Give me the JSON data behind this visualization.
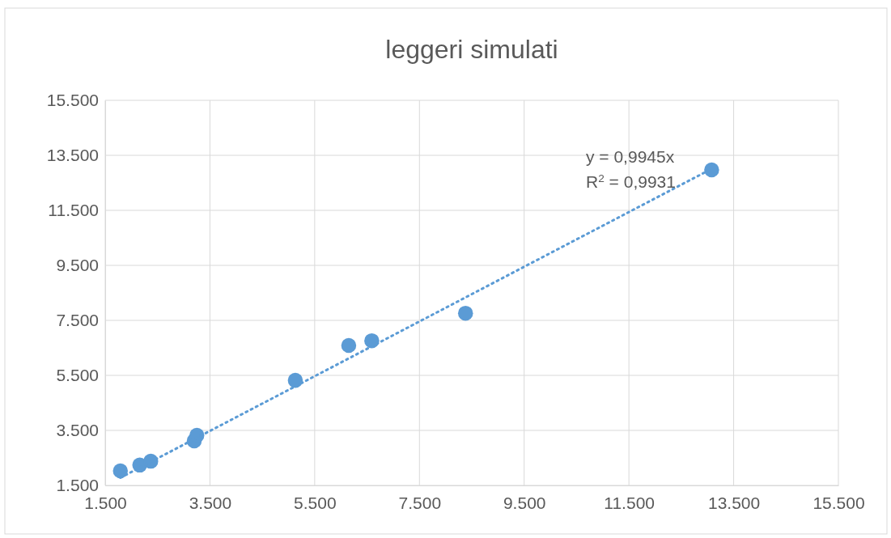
{
  "chart_data": {
    "type": "scatter",
    "title": "leggeri simulati",
    "series": [
      {
        "color": "#5b9bd5",
        "marker": "circle",
        "x": [
          1790,
          2160,
          2370,
          3200,
          3250,
          5130,
          6150,
          6590,
          8380,
          13080
        ],
        "values": [
          2030,
          2240,
          2380,
          3120,
          3320,
          5320,
          6590,
          6760,
          7760,
          12970
        ]
      },
      {
        "type": "line",
        "color": "#5b9bd5",
        "line_style": "dotted",
        "x": [
          1790,
          13080
        ],
        "values": [
          1780,
          13010
        ]
      }
    ],
    "xlim": [
      1500,
      15500
    ],
    "ylim": [
      1500,
      15500
    ],
    "xticks": [
      {
        "value": 1500,
        "label": "1.500"
      },
      {
        "value": 3500,
        "label": "3.500"
      },
      {
        "value": 5500,
        "label": "5.500"
      },
      {
        "value": 7500,
        "label": "7.500"
      },
      {
        "value": 9500,
        "label": "9.500"
      },
      {
        "value": 11500,
        "label": "11.500"
      },
      {
        "value": 13500,
        "label": "13.500"
      },
      {
        "value": 15500,
        "label": "15.500"
      }
    ],
    "yticks": [
      {
        "value": 1500,
        "label": "1.500"
      },
      {
        "value": 3500,
        "label": "3.500"
      },
      {
        "value": 5500,
        "label": "5.500"
      },
      {
        "value": 7500,
        "label": "7.500"
      },
      {
        "value": 9500,
        "label": "9.500"
      },
      {
        "value": 11500,
        "label": "11.500"
      },
      {
        "value": 13500,
        "label": "13.500"
      },
      {
        "value": 15500,
        "label": "15.500"
      }
    ],
    "grid": true,
    "annotations": [
      "y = 0,9945x",
      "R$^{2}$ = 0,9931"
    ]
  }
}
